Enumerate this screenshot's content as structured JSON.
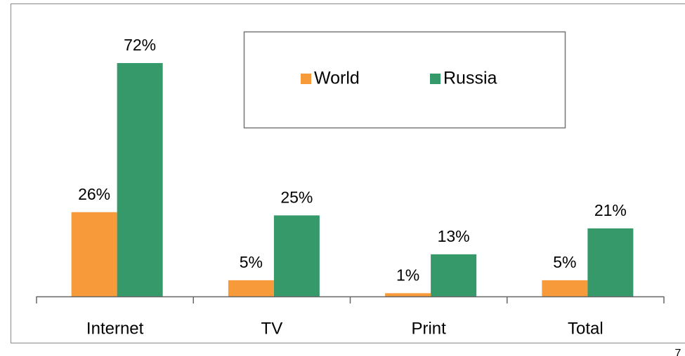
{
  "chart_data": {
    "type": "bar",
    "categories": [
      "Internet",
      "TV",
      "Print",
      "Total"
    ],
    "series": [
      {
        "name": "World",
        "color": "#f79a3a",
        "values": [
          26,
          5,
          1,
          5
        ],
        "value_labels": [
          "26%",
          "5%",
          "1%",
          "5%"
        ]
      },
      {
        "name": "Russia",
        "color": "#35996a",
        "values": [
          72,
          25,
          13,
          21
        ],
        "value_labels": [
          "72%",
          "25%",
          "13%",
          "21%"
        ]
      }
    ],
    "legend": "top-right"
  },
  "page_number": "7"
}
